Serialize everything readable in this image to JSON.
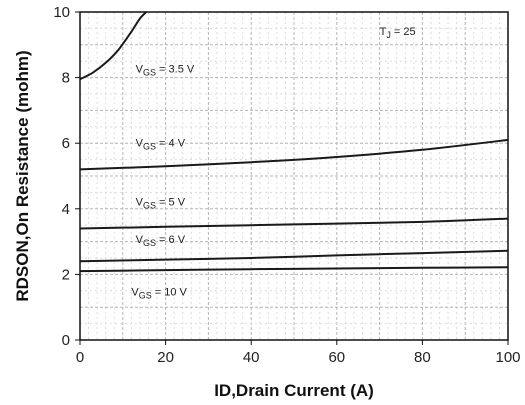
{
  "chart_data": {
    "type": "line",
    "xlabel": "ID,Drain Current (A)",
    "ylabel": "RDSON,On Resistance (mohm)",
    "xlim": [
      0,
      100
    ],
    "ylim": [
      0,
      10
    ],
    "xticks": [
      "0",
      "20",
      "40",
      "60",
      "80",
      "100"
    ],
    "yticks": [
      "0",
      "2",
      "4",
      "6",
      "8",
      "10"
    ],
    "grid": true,
    "annotation": {
      "text": "T",
      "sub": "J",
      "rest": " = 25 ",
      "anchor_x": 70,
      "anchor_y": 9.3
    },
    "series": [
      {
        "name": "VGS = 3.5 V",
        "label": {
          "main": "V",
          "sub": "GS",
          "rest": " = 3.5 V"
        },
        "label_at": [
          13,
          8.15
        ],
        "x": [
          0,
          3,
          6,
          9,
          12,
          14,
          15.5
        ],
        "y": [
          7.95,
          8.15,
          8.45,
          8.85,
          9.4,
          9.8,
          10.0
        ]
      },
      {
        "name": "VGS = 4 V",
        "label": {
          "main": "V",
          "sub": "GS",
          "rest": " = 4 V"
        },
        "label_at": [
          13,
          5.9
        ],
        "x": [
          0,
          20,
          40,
          60,
          80,
          100
        ],
        "y": [
          5.2,
          5.3,
          5.42,
          5.58,
          5.8,
          6.1
        ]
      },
      {
        "name": "VGS = 5 V",
        "label": {
          "main": "V",
          "sub": "GS",
          "rest": " = 5 V"
        },
        "label_at": [
          13,
          4.1
        ],
        "x": [
          0,
          20,
          40,
          60,
          80,
          100
        ],
        "y": [
          3.4,
          3.45,
          3.5,
          3.55,
          3.6,
          3.7
        ]
      },
      {
        "name": "VGS = 6 V",
        "label": {
          "main": "V",
          "sub": "GS",
          "rest": " = 6 V"
        },
        "label_at": [
          13,
          2.95
        ],
        "x": [
          0,
          20,
          40,
          60,
          80,
          100
        ],
        "y": [
          2.4,
          2.45,
          2.5,
          2.58,
          2.65,
          2.72
        ]
      },
      {
        "name": "VGS = 10 V",
        "label": {
          "main": "V",
          "sub": "GS",
          "rest": " = 10 V"
        },
        "label_at": [
          12,
          1.35
        ],
        "x": [
          0,
          20,
          40,
          60,
          80,
          100
        ],
        "y": [
          2.1,
          2.13,
          2.16,
          2.18,
          2.2,
          2.22
        ]
      }
    ]
  }
}
